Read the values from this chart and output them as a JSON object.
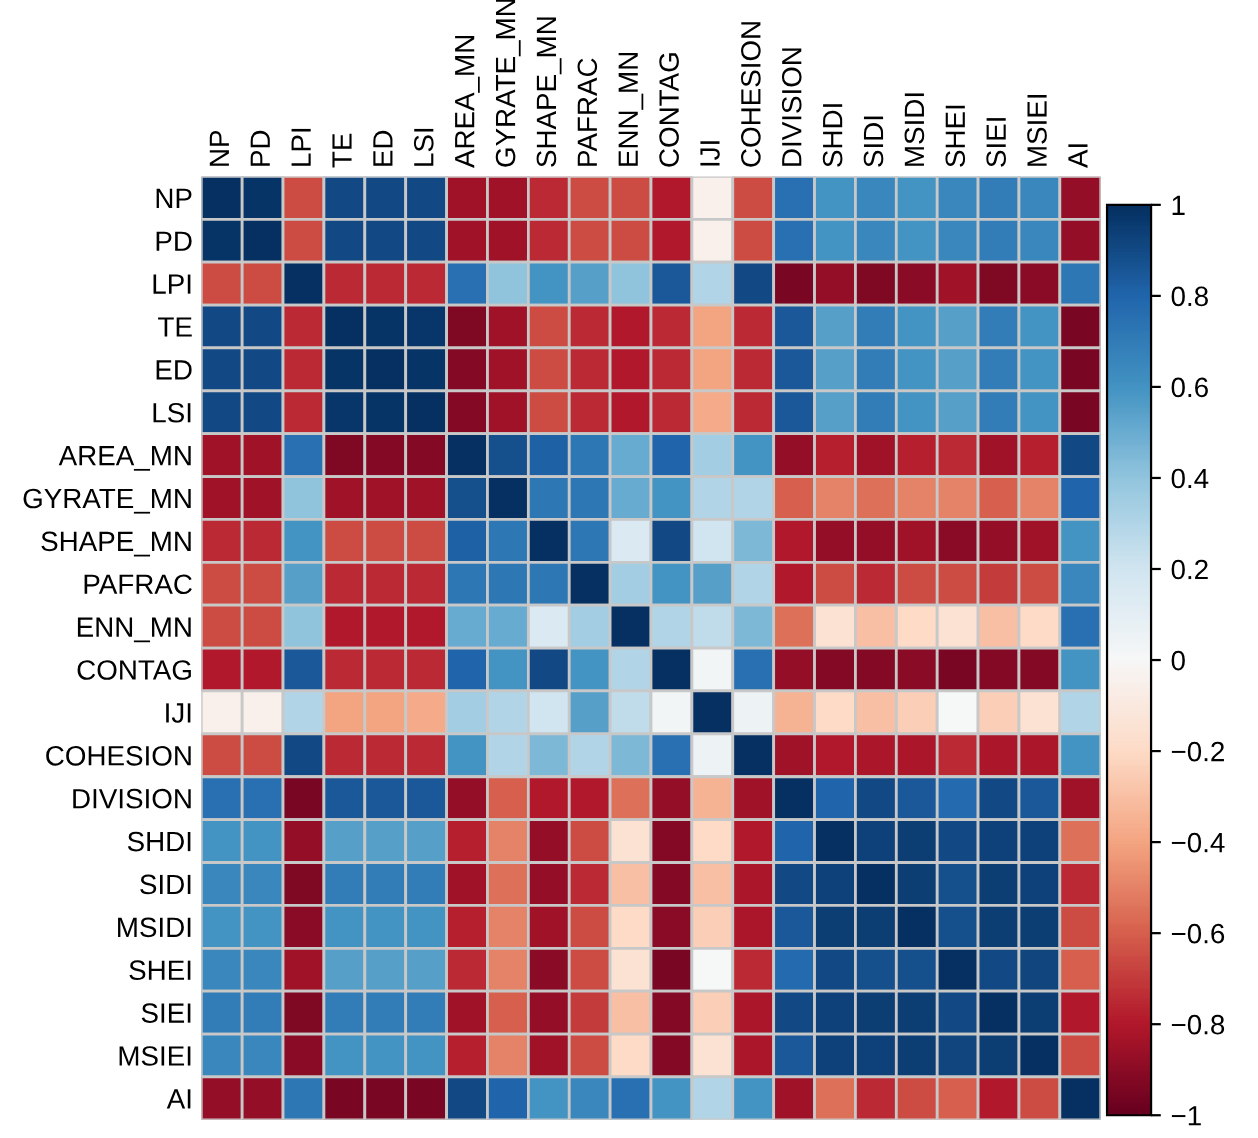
{
  "chart_data": {
    "type": "heatmap",
    "categories": [
      "NP",
      "PD",
      "LPI",
      "TE",
      "ED",
      "LSI",
      "AREA_MN",
      "GYRATE_MN",
      "SHAPE_MN",
      "PAFRAC",
      "ENN_MN",
      "CONTAG",
      "IJI",
      "COHESION",
      "DIVISION",
      "SHDI",
      "SIDI",
      "MSIDI",
      "SHEI",
      "SIEI",
      "MSIEI",
      "AI"
    ],
    "y_categories": [
      "NP",
      "PD",
      "LPI",
      "TE",
      "ED",
      "LSI",
      "AREA_MN",
      "GYRATE_MN",
      "SHAPE_MN",
      "PAFRAC",
      "ENN_MN",
      "CONTAG",
      "IJI",
      "COHESION",
      "DIVISION",
      "SHDI",
      "SIDI",
      "MSIDI",
      "SHEI",
      "SIEI",
      "MSIEI",
      "AI"
    ],
    "cells": [
      [
        1,
        0.98,
        -0.65,
        0.9,
        0.9,
        0.9,
        -0.85,
        -0.85,
        -0.75,
        -0.65,
        -0.65,
        -0.8,
        -0.05,
        -0.65,
        0.75,
        0.6,
        0.65,
        0.6,
        0.65,
        0.7,
        0.65,
        -0.88
      ],
      [
        0.98,
        1,
        -0.65,
        0.9,
        0.9,
        0.9,
        -0.85,
        -0.85,
        -0.75,
        -0.65,
        -0.65,
        -0.8,
        -0.05,
        -0.65,
        0.75,
        0.6,
        0.65,
        0.6,
        0.65,
        0.7,
        0.65,
        -0.88
      ],
      [
        -0.65,
        -0.65,
        1,
        -0.75,
        -0.75,
        -0.75,
        0.75,
        0.4,
        0.6,
        0.55,
        0.4,
        0.85,
        0.3,
        0.9,
        -0.95,
        -0.88,
        -0.93,
        -0.9,
        -0.85,
        -0.93,
        -0.9,
        0.72
      ],
      [
        0.9,
        0.9,
        -0.75,
        1,
        0.98,
        0.97,
        -0.93,
        -0.85,
        -0.65,
        -0.75,
        -0.8,
        -0.75,
        -0.4,
        -0.75,
        0.85,
        0.55,
        0.7,
        0.6,
        0.55,
        0.7,
        0.6,
        -0.95
      ],
      [
        0.9,
        0.9,
        -0.75,
        0.98,
        1,
        0.98,
        -0.92,
        -0.85,
        -0.65,
        -0.75,
        -0.8,
        -0.75,
        -0.4,
        -0.75,
        0.85,
        0.55,
        0.7,
        0.6,
        0.55,
        0.7,
        0.6,
        -0.95
      ],
      [
        0.9,
        0.9,
        -0.75,
        0.97,
        0.98,
        1,
        -0.92,
        -0.85,
        -0.65,
        -0.75,
        -0.8,
        -0.75,
        -0.38,
        -0.75,
        0.85,
        0.55,
        0.7,
        0.6,
        0.55,
        0.7,
        0.6,
        -0.95
      ],
      [
        -0.85,
        -0.85,
        0.75,
        -0.93,
        -0.92,
        -0.92,
        1,
        0.88,
        0.82,
        0.72,
        0.5,
        0.8,
        0.35,
        0.6,
        -0.88,
        -0.78,
        -0.85,
        -0.78,
        -0.75,
        -0.85,
        -0.78,
        0.9
      ],
      [
        -0.85,
        -0.85,
        0.4,
        -0.85,
        -0.85,
        -0.85,
        0.88,
        1,
        0.72,
        0.72,
        0.5,
        0.6,
        0.3,
        0.3,
        -0.6,
        -0.5,
        -0.55,
        -0.5,
        -0.5,
        -0.6,
        -0.5,
        0.8
      ],
      [
        -0.75,
        -0.75,
        0.6,
        -0.65,
        -0.65,
        -0.65,
        0.82,
        0.72,
        1,
        0.72,
        0.15,
        0.9,
        0.2,
        0.45,
        -0.8,
        -0.88,
        -0.88,
        -0.85,
        -0.9,
        -0.88,
        -0.85,
        0.6
      ],
      [
        -0.65,
        -0.65,
        0.55,
        -0.75,
        -0.75,
        -0.75,
        0.72,
        0.72,
        0.72,
        1,
        0.35,
        0.6,
        0.55,
        0.3,
        -0.8,
        -0.65,
        -0.75,
        -0.65,
        -0.65,
        -0.7,
        -0.65,
        0.65
      ],
      [
        -0.65,
        -0.65,
        0.4,
        -0.8,
        -0.8,
        -0.8,
        0.5,
        0.5,
        0.15,
        0.35,
        1,
        0.3,
        0.25,
        0.45,
        -0.55,
        -0.15,
        -0.3,
        -0.2,
        -0.15,
        -0.3,
        -0.2,
        0.75
      ],
      [
        -0.8,
        -0.8,
        0.85,
        -0.75,
        -0.75,
        -0.75,
        0.8,
        0.6,
        0.9,
        0.6,
        0.3,
        1,
        0.03,
        0.75,
        -0.88,
        -0.92,
        -0.92,
        -0.9,
        -0.95,
        -0.92,
        -0.92,
        0.6
      ],
      [
        -0.05,
        -0.05,
        0.3,
        -0.4,
        -0.4,
        -0.38,
        0.35,
        0.3,
        0.2,
        0.55,
        0.25,
        0.03,
        1,
        0.05,
        -0.35,
        -0.2,
        -0.3,
        -0.25,
        0,
        -0.25,
        -0.15,
        0.3
      ],
      [
        -0.65,
        -0.65,
        0.9,
        -0.75,
        -0.75,
        -0.75,
        0.6,
        0.3,
        0.45,
        0.3,
        0.45,
        0.75,
        0.05,
        1,
        -0.85,
        -0.8,
        -0.82,
        -0.82,
        -0.75,
        -0.82,
        -0.82,
        0.6
      ],
      [
        0.75,
        0.75,
        -0.95,
        0.85,
        0.85,
        0.85,
        -0.88,
        -0.6,
        -0.8,
        -0.8,
        -0.55,
        -0.88,
        -0.35,
        -0.85,
        1,
        0.8,
        0.9,
        0.85,
        0.78,
        0.9,
        0.85,
        -0.85
      ],
      [
        0.6,
        0.6,
        -0.88,
        0.55,
        0.55,
        0.55,
        -0.78,
        -0.5,
        -0.88,
        -0.65,
        -0.15,
        -0.92,
        -0.2,
        -0.8,
        0.8,
        1,
        0.93,
        0.95,
        0.9,
        0.93,
        0.93,
        -0.55
      ],
      [
        0.65,
        0.65,
        -0.93,
        0.7,
        0.7,
        0.7,
        -0.85,
        -0.55,
        -0.88,
        -0.75,
        -0.3,
        -0.92,
        -0.3,
        -0.82,
        0.9,
        0.93,
        1,
        0.95,
        0.88,
        0.95,
        0.93,
        -0.75
      ],
      [
        0.6,
        0.6,
        -0.9,
        0.6,
        0.6,
        0.6,
        -0.78,
        -0.5,
        -0.85,
        -0.65,
        -0.2,
        -0.9,
        -0.25,
        -0.82,
        0.85,
        0.95,
        0.95,
        1,
        0.88,
        0.95,
        0.95,
        -0.65
      ],
      [
        0.65,
        0.65,
        -0.85,
        0.55,
        0.55,
        0.55,
        -0.75,
        -0.5,
        -0.9,
        -0.65,
        -0.15,
        -0.95,
        0,
        -0.75,
        0.78,
        0.9,
        0.88,
        0.88,
        1,
        0.9,
        0.92,
        -0.6
      ],
      [
        0.7,
        0.7,
        -0.93,
        0.7,
        0.7,
        0.7,
        -0.85,
        -0.6,
        -0.88,
        -0.7,
        -0.3,
        -0.92,
        -0.25,
        -0.82,
        0.9,
        0.93,
        0.95,
        0.95,
        0.9,
        1,
        0.95,
        -0.8
      ],
      [
        0.65,
        0.65,
        -0.9,
        0.6,
        0.6,
        0.6,
        -0.78,
        -0.5,
        -0.85,
        -0.65,
        -0.2,
        -0.92,
        -0.15,
        -0.82,
        0.85,
        0.93,
        0.93,
        0.95,
        0.92,
        0.95,
        1,
        -0.65
      ],
      [
        -0.88,
        -0.88,
        0.72,
        -0.95,
        -0.95,
        -0.95,
        0.9,
        0.8,
        0.6,
        0.65,
        0.75,
        0.6,
        0.3,
        0.6,
        -0.85,
        -0.55,
        -0.75,
        -0.65,
        -0.6,
        -0.8,
        -0.65,
        1
      ]
    ],
    "clim": [
      -1,
      1
    ],
    "cticks": [
      1,
      0.8,
      0.6,
      0.4,
      0.2,
      0,
      {
        "value": -0.2,
        "label": "−0.2"
      },
      {
        "value": -0.4,
        "label": "−0.4"
      },
      {
        "value": -0.6,
        "label": "−0.6"
      },
      {
        "value": -0.8,
        "label": "−0.8"
      },
      {
        "value": -1,
        "label": "−1"
      }
    ]
  }
}
